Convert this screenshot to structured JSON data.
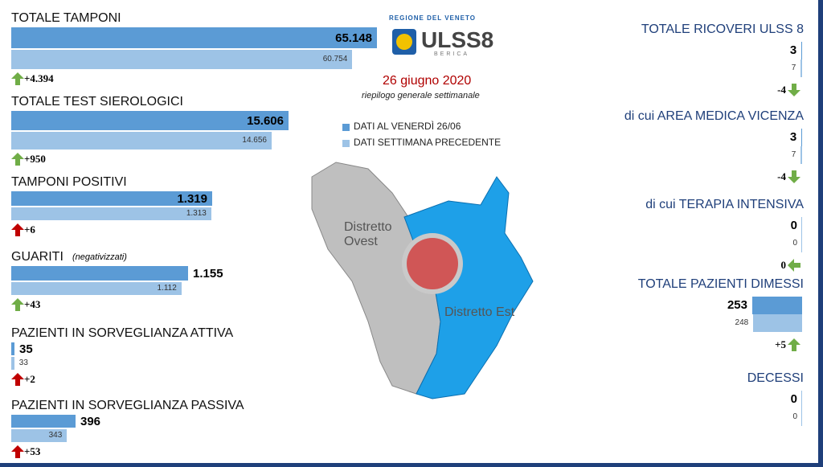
{
  "header": {
    "region": "REGIONE DEL VENETO",
    "logo": "ULSS8",
    "logo_sub": "BERICA",
    "date": "26 giugno 2020",
    "subtitle": "riepilogo generale settimanale"
  },
  "legend": [
    {
      "label": "DATI AL VENERDÌ 26/06",
      "color": "#5b9bd5"
    },
    {
      "label": "DATI SETTIMANA  PRECEDENTE",
      "color": "#9dc3e6"
    }
  ],
  "map": {
    "labels": [
      "Distretto Ovest",
      "Distretto Est"
    ]
  },
  "left_panels": [
    {
      "title": "TOTALE TAMPONI",
      "current": {
        "value": 65148,
        "label": "65.148"
      },
      "previous": {
        "value": 60754,
        "label": "60.754"
      },
      "change": {
        "value": 4394,
        "label": "+4.394",
        "direction": "up",
        "color": "#70ad47"
      }
    },
    {
      "title": "TOTALE TEST SIEROLOGICI",
      "current": {
        "value": 15606,
        "label": "15.606"
      },
      "previous": {
        "value": 14656,
        "label": "14.656"
      },
      "change": {
        "value": 950,
        "label": "+950",
        "direction": "up",
        "color": "#70ad47"
      }
    },
    {
      "title": "TAMPONI POSITIVI",
      "current": {
        "value": 1319,
        "label": "1.319"
      },
      "previous": {
        "value": 1313,
        "label": "1.313"
      },
      "change": {
        "value": 6,
        "label": "+6",
        "direction": "up",
        "color": "#c00000"
      }
    },
    {
      "title": "GUARITI",
      "note": "(negativizzati)",
      "current": {
        "value": 1155,
        "label": "1.155"
      },
      "previous": {
        "value": 1112,
        "label": "1.112"
      },
      "change": {
        "value": 43,
        "label": "+43",
        "direction": "up",
        "color": "#70ad47"
      }
    },
    {
      "title": "PAZIENTI IN SORVEGLIANZA ATTIVA",
      "current": {
        "value": 35
      },
      "previous": {
        "value": 33
      },
      "change": {
        "value": 2,
        "label": "+2",
        "direction": "up",
        "color": "#c00000"
      }
    },
    {
      "title": "PAZIENTI IN SORVEGLIANZA PASSIVA",
      "current": {
        "value": 396
      },
      "previous": {
        "value": 343
      },
      "change": {
        "value": 53,
        "label": "+53",
        "direction": "up",
        "color": "#c00000"
      }
    }
  ],
  "right_panels": [
    {
      "title": "TOTALE RICOVERI ULSS 8",
      "current": {
        "value": 3
      },
      "previous": {
        "value": 7
      },
      "change": {
        "value": -4,
        "direction": "down",
        "color": "#70ad47"
      }
    },
    {
      "title": "di cui AREA MEDICA VICENZA",
      "current": {
        "value": 3
      },
      "previous": {
        "value": 7
      },
      "change": {
        "value": -4,
        "direction": "down",
        "color": "#70ad47"
      }
    },
    {
      "title": "di cui TERAPIA INTENSIVA",
      "current": {
        "value": 0
      },
      "previous": {
        "value": 0
      },
      "change": {
        "value": 0,
        "direction": "left",
        "color": "#70ad47"
      }
    },
    {
      "title": "TOTALE PAZIENTI DIMESSI",
      "current": {
        "value": 253
      },
      "previous": {
        "value": 248
      },
      "change": {
        "value": 5,
        "label": "+5",
        "direction": "up",
        "color": "#70ad47"
      }
    },
    {
      "title": "DECESSI",
      "current": {
        "value": 0
      },
      "previous": {
        "value": 0
      }
    }
  ]
}
